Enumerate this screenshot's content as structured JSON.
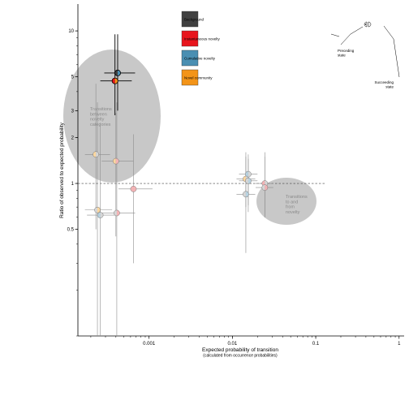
{
  "chart_data": {
    "type": "scatter",
    "xlabel": "Expected probability of transition",
    "xlabel_sub": "(calculated from occurrence probabilities)",
    "ylabel": "Ratio of observed to expected probability",
    "x_scale": "log",
    "y_scale": "log",
    "xlim": [
      0.00014,
      1.15
    ],
    "ylim": [
      0.1,
      15
    ],
    "x_ticks": [
      {
        "value": 0.001,
        "label": "0.001"
      },
      {
        "value": 0.01,
        "label": "0.01"
      },
      {
        "value": 0.1,
        "label": "0.1"
      },
      {
        "value": 1,
        "label": "1"
      }
    ],
    "y_ticks": [
      {
        "value": 0.5,
        "label": "0.5"
      },
      {
        "value": 1,
        "label": "1"
      },
      {
        "value": 2,
        "label": "2"
      },
      {
        "value": 3,
        "label": "3"
      },
      {
        "value": 5,
        "label": "5"
      },
      {
        "value": 10,
        "label": "10"
      }
    ],
    "reference_line": {
      "y": 1
    },
    "legend": {
      "placement": "top-center",
      "entries": [
        {
          "label": "Background",
          "color": "#404040"
        },
        {
          "label": "Instantaneous novelty",
          "color": "#e8141c"
        },
        {
          "label": "Cumulative novelty",
          "color": "#4a8fb2"
        },
        {
          "label": "Novel community",
          "color": "#f39418"
        }
      ]
    },
    "key": {
      "preceding": "Preceding state",
      "succeeding": "Succeeding state"
    },
    "regions": [
      {
        "text": "Transitions between novelty categories"
      },
      {
        "text": "Transitions to and from novelty"
      }
    ],
    "series": [
      {
        "x": 0.00042,
        "y": 5.3,
        "left": "#404040",
        "right": "#4a8fb2",
        "bold": true,
        "x_lo": 0.00029,
        "x_hi": 0.00068,
        "y_lo": 3.0,
        "y_hi": 9.5
      },
      {
        "x": 0.00039,
        "y": 4.7,
        "left": "#e8141c",
        "right": "#f39418",
        "bold": true,
        "x_lo": 0.00026,
        "x_hi": 0.00062,
        "y_lo": 2.8,
        "y_hi": 9.5
      },
      {
        "x": 0.00023,
        "y": 1.55,
        "left": "#fbd7a0",
        "right": "#d6d6d6",
        "bold": false,
        "x_lo": 0.00017,
        "x_hi": 0.00034,
        "y_lo": 0.5,
        "y_hi": 4.5
      },
      {
        "x": 0.0004,
        "y": 1.4,
        "left": "#fbd7a0",
        "right": "#f3b3b5",
        "bold": false,
        "x_lo": 0.00027,
        "x_hi": 0.00065,
        "y_lo": 0.45,
        "y_hi": 2.9
      },
      {
        "x": 0.00065,
        "y": 0.92,
        "left": "#f3b3b5",
        "right": "#f3b3b5",
        "bold": false,
        "x_lo": 0.00043,
        "x_hi": 0.0011,
        "y_lo": 0.3,
        "y_hi": 2.1
      },
      {
        "x": 0.00024,
        "y": 0.67,
        "left": "#d6d6d6",
        "right": "#fbd7a0",
        "bold": false,
        "x_lo": 0.00017,
        "x_hi": 0.00036,
        "y_lo": 0.1,
        "y_hi": 3.4
      },
      {
        "x": 0.00026,
        "y": 0.62,
        "left": "#b7d2e0",
        "right": "#d6d6d6",
        "bold": false,
        "x_lo": 0.00018,
        "x_hi": 0.00039,
        "y_lo": 0.1,
        "y_hi": 2.5
      },
      {
        "x": 0.00041,
        "y": 0.64,
        "left": "#d6d6d6",
        "right": "#f3b3b5",
        "bold": false,
        "x_lo": 0.00027,
        "x_hi": 0.00068,
        "y_lo": 0.1,
        "y_hi": 3.4
      },
      {
        "x": 0.0155,
        "y": 1.15,
        "left": "#b7d2e0",
        "right": "#d6d6d6",
        "bold": false,
        "x_lo": 0.012,
        "x_hi": 0.02,
        "y_lo": 0.65,
        "y_hi": 1.55
      },
      {
        "x": 0.0145,
        "y": 1.07,
        "left": "#fbd7a0",
        "right": "#d6d6d6",
        "bold": false,
        "x_lo": 0.0112,
        "x_hi": 0.0188,
        "y_lo": 0.7,
        "y_hi": 1.5
      },
      {
        "x": 0.0155,
        "y": 1.04,
        "left": "#d6d6d6",
        "right": "#b7d2e0",
        "bold": false,
        "x_lo": 0.012,
        "x_hi": 0.02,
        "y_lo": 0.72,
        "y_hi": 1.45
      },
      {
        "x": 0.0145,
        "y": 0.85,
        "left": "#d6d6d6",
        "right": "#b7d2e0",
        "bold": false,
        "x_lo": 0.0112,
        "x_hi": 0.0188,
        "y_lo": 0.35,
        "y_hi": 1.6
      },
      {
        "x": 0.0245,
        "y": 1.0,
        "left": "#f3b3b5",
        "right": "#d6d6d6",
        "bold": false,
        "x_lo": 0.019,
        "x_hi": 0.031,
        "y_lo": 0.6,
        "y_hi": 1.6
      },
      {
        "x": 0.0245,
        "y": 0.94,
        "left": "#d6d6d6",
        "right": "#f3b3b5",
        "bold": false,
        "x_lo": 0.019,
        "x_hi": 0.031,
        "y_lo": 0.6,
        "y_hi": 1.5
      }
    ]
  }
}
